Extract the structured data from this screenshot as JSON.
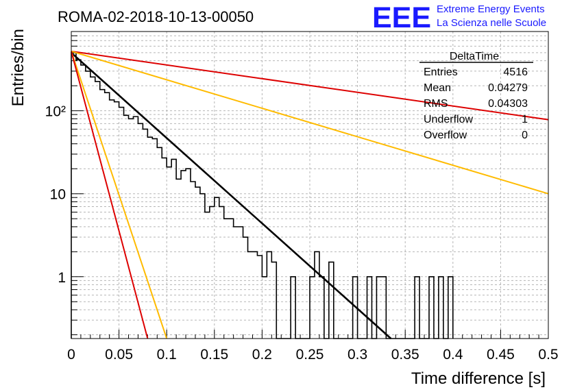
{
  "chart_data": {
    "type": "line",
    "title": "ROMA-02-2018-10-13-00050",
    "xlabel": "Time difference [s]",
    "ylabel": "Entries/bin",
    "xlim": [
      0,
      0.5
    ],
    "ylim": [
      0.18,
      900
    ],
    "yscale": "log",
    "grid": true,
    "x_ticks": [
      "0",
      "0.05",
      "0.1",
      "0.15",
      "0.2",
      "0.25",
      "0.3",
      "0.35",
      "0.4",
      "0.45",
      "0.5"
    ],
    "y_ticks": [
      "1",
      "10",
      "10²"
    ],
    "histogram": {
      "name": "DeltaTime",
      "bin_width": 0.005,
      "counts": [
        500,
        410,
        355,
        300,
        255,
        225,
        180,
        165,
        135,
        128,
        110,
        88,
        80,
        85,
        70,
        60,
        48,
        46,
        36,
        27,
        21,
        26,
        15,
        19,
        20,
        14,
        12,
        10,
        6,
        7,
        9,
        7,
        5,
        5,
        4,
        4,
        3,
        2,
        2,
        1.8,
        1,
        2,
        1.5,
        0.01,
        0.01,
        0.01,
        1,
        0.01,
        0.01,
        0.01,
        1,
        2,
        1,
        0.01,
        1.5,
        0.01,
        0.01,
        0.01,
        0.01,
        1,
        0.01,
        0.01,
        1,
        0.01,
        1,
        1,
        0.01,
        0.01,
        0.01,
        0.01,
        0.01,
        0.01,
        1,
        0.01,
        0.01,
        1,
        0.01,
        1,
        0.01,
        1
      ]
    },
    "series": [
      {
        "color": "#000000",
        "x": [
          0,
          0.335
        ],
        "y": [
          500,
          0.18
        ]
      },
      {
        "color": "#dd0000",
        "x": [
          0,
          0.5
        ],
        "y": [
          520,
          78
        ]
      },
      {
        "color": "#ffbb00",
        "x": [
          0,
          0.5
        ],
        "y": [
          520,
          10
        ]
      },
      {
        "color": "#ffbb00",
        "x": [
          0,
          0.1
        ],
        "y": [
          520,
          0.18
        ]
      },
      {
        "color": "#dd0000",
        "x": [
          0,
          0.08
        ],
        "y": [
          520,
          0.18
        ]
      }
    ]
  },
  "stats": {
    "title": "DeltaTime",
    "rows": [
      {
        "label": "Entries",
        "value": "4516"
      },
      {
        "label": "Mean",
        "value": "0.04279"
      },
      {
        "label": "RMS",
        "value": "0.04303"
      },
      {
        "label": "Underflow",
        "value": "1"
      },
      {
        "label": "Overflow",
        "value": "0"
      }
    ]
  },
  "logo": {
    "mark": "EEE",
    "line1": "Extreme Energy Events",
    "line2": "La Scienza nelle Scuole",
    "color": "#1a1aff"
  }
}
